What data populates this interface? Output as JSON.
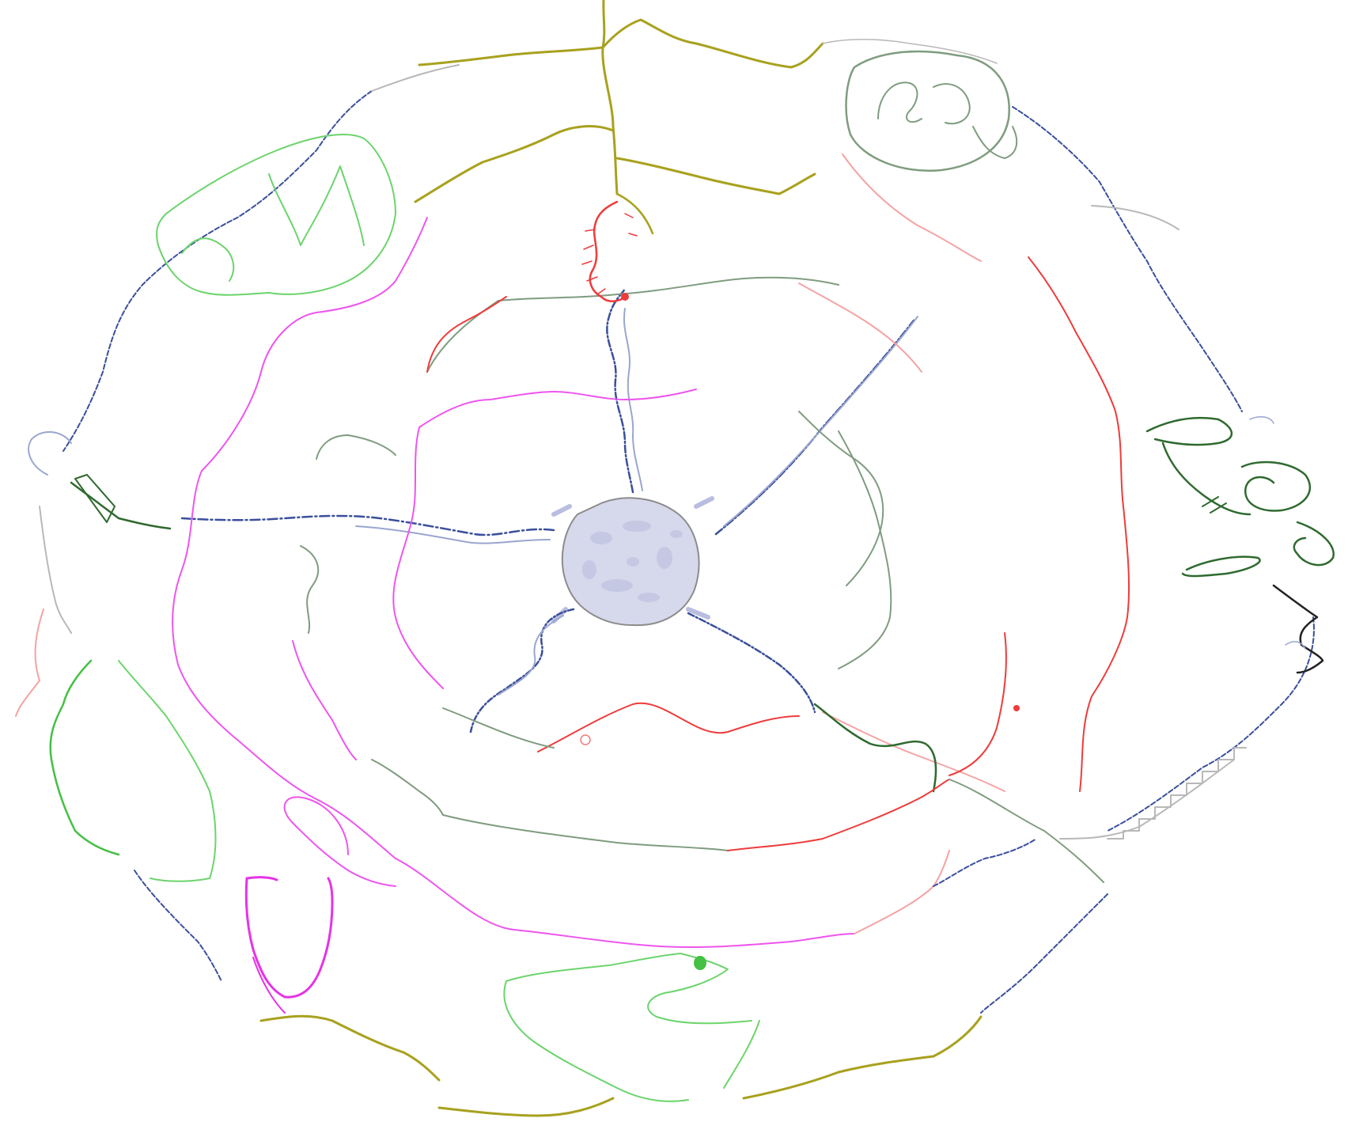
{
  "diagram": {
    "kind": "hand-drawn radial path graph",
    "background": "#ffffff",
    "palette": {
      "olive": "#a8a11e",
      "red": "#ef3b3b",
      "light_red": "#f5a3a3",
      "magenta": "#ee55ee",
      "bright_magenta": "#e633e6",
      "navy": "#3a4f9c",
      "light_navy": "#9aa6cf",
      "dark_green": "#2f6a2f",
      "gray_green": "#7f9c7f",
      "light_green": "#6cd46c",
      "bright_green": "#44c044",
      "gray": "#b8b8b8",
      "black": "#222222",
      "hub_fill": "#d6d8ec",
      "hub_stroke": "#8c8c8c"
    },
    "center_hub": {
      "name": "central-hub",
      "shape": "rounded pentagon filled with lavender blotches"
    },
    "rings": [
      {
        "name": "ring-inner-dark-green-red",
        "colors": [
          "gray_green",
          "light_red",
          "red"
        ]
      },
      {
        "name": "ring-magenta-inner",
        "colors": [
          "magenta"
        ]
      },
      {
        "name": "ring-magenta-outer",
        "colors": [
          "magenta",
          "light_red"
        ]
      },
      {
        "name": "ring-red-outer",
        "colors": [
          "red",
          "light_red"
        ]
      },
      {
        "name": "ring-outermost-mixed",
        "colors": [
          "olive",
          "navy",
          "gray",
          "light_green"
        ]
      }
    ],
    "spokes": [
      {
        "name": "spoke-north",
        "color": "navy"
      },
      {
        "name": "spoke-northeast",
        "color": "navy"
      },
      {
        "name": "spoke-southeast",
        "color": "navy"
      },
      {
        "name": "spoke-southwest",
        "color": "navy"
      },
      {
        "name": "spoke-west",
        "color": "navy"
      }
    ],
    "clusters": [
      {
        "name": "cluster-top-olive-tree",
        "color": "olive"
      },
      {
        "name": "cluster-top-right-scribble",
        "color": "gray_green"
      },
      {
        "name": "cluster-top-left-light-green",
        "color": "light_green"
      },
      {
        "name": "cluster-right-dark-green-coils",
        "color": "dark_green"
      },
      {
        "name": "cluster-right-black-zigzag",
        "color": "black"
      },
      {
        "name": "cluster-left-green-loop",
        "color": "bright_green"
      },
      {
        "name": "cluster-bottom-magenta-u",
        "color": "bright_magenta"
      },
      {
        "name": "cluster-bottom-light-green",
        "color": "light_green"
      },
      {
        "name": "cluster-bottom-olive-arcs",
        "color": "olive"
      }
    ]
  }
}
